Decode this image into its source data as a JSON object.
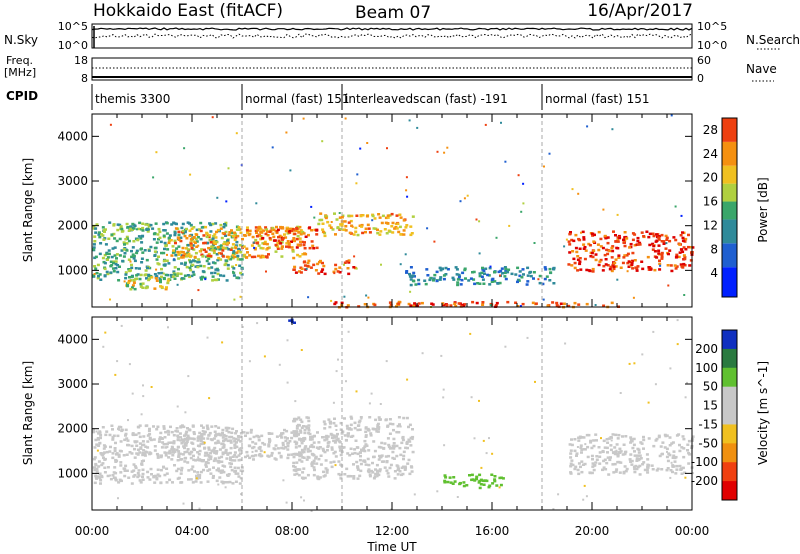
{
  "header": {
    "radar": "Hokkaido East (fitACF)",
    "beam": "Beam 07",
    "date": "16/Apr/2017"
  },
  "top_panels": {
    "nsky_label": "N.Sky",
    "nsky_ticks": [
      "10^5",
      "10^0"
    ],
    "nsearch_label": "N.Search",
    "nsearch_ticks": [
      "10^5",
      "10^0"
    ],
    "freq_label": "Freq.",
    "freq_unit": "[MHz]",
    "freq_ticks": [
      "18",
      "8"
    ],
    "nave_label": "Nave",
    "nave_ticks": [
      "60",
      "0"
    ],
    "cpid_label": "CPID",
    "cpid_segments": [
      {
        "label": "themis 3300",
        "start_hour": 0
      },
      {
        "label": "normal (fast) 151",
        "start_hour": 6
      },
      {
        "label": "interleavedscan (fast) -191",
        "start_hour": 10
      },
      {
        "label": "normal (fast) 151",
        "start_hour": 18
      }
    ]
  },
  "chart_data": [
    {
      "type": "heatmap",
      "title": "Power",
      "ylabel": "Slant Range [km]",
      "xlabel": "",
      "ylim": [
        180,
        4500
      ],
      "xlim_hours": [
        0,
        24
      ],
      "y_ticks": [
        1000,
        2000,
        3000,
        4000
      ],
      "colorbar_label": "Power [dB]",
      "colorbar_ticks": [
        4,
        8,
        12,
        16,
        20,
        24,
        28
      ],
      "colorbar_range": [
        0,
        30
      ],
      "regions": [
        {
          "t0": 0.0,
          "t1": 6.0,
          "r0": 800,
          "r1": 2100,
          "value": 14
        },
        {
          "t0": 1.2,
          "t1": 3.0,
          "r0": 600,
          "r1": 900,
          "value": 18
        },
        {
          "t0": 3.0,
          "t1": 8.5,
          "r0": 1300,
          "r1": 2000,
          "value": 23
        },
        {
          "t0": 6.5,
          "t1": 9.0,
          "r0": 1500,
          "r1": 2000,
          "value": 27
        },
        {
          "t0": 8.0,
          "t1": 10.5,
          "r0": 950,
          "r1": 1250,
          "value": 27
        },
        {
          "t0": 9.0,
          "t1": 12.8,
          "r0": 1800,
          "r1": 2300,
          "value": 22
        },
        {
          "t0": 12.5,
          "t1": 18.5,
          "r0": 700,
          "r1": 1100,
          "value": 11
        },
        {
          "t0": 19.0,
          "t1": 24.0,
          "r0": 1000,
          "r1": 1900,
          "value": 29
        },
        {
          "t0": 9.5,
          "t1": 21.0,
          "r0": 200,
          "r1": 320,
          "value": 27
        }
      ]
    },
    {
      "type": "heatmap",
      "title": "Velocity",
      "ylabel": "Slant Range [km]",
      "xlabel": "Time UT",
      "ylim": [
        180,
        4500
      ],
      "xlim_hours": [
        0,
        24
      ],
      "y_ticks": [
        1000,
        2000,
        3000,
        4000
      ],
      "x_ticks": [
        "00:00",
        "04:00",
        "08:00",
        "12:00",
        "16:00",
        "20:00",
        "00:00"
      ],
      "colorbar_label": "Velocity [m s^-1]",
      "colorbar_ticks": [
        "200",
        "100",
        "50",
        "15",
        "-15",
        "-50",
        "-100",
        "-200"
      ],
      "regions": [
        {
          "t0": 0.0,
          "t1": 6.0,
          "r0": 800,
          "r1": 2100,
          "value": 0
        },
        {
          "t0": 3.0,
          "t1": 8.5,
          "r0": 1300,
          "r1": 2000,
          "value": 0
        },
        {
          "t0": 8.0,
          "t1": 12.8,
          "r0": 900,
          "r1": 2300,
          "value": 0
        },
        {
          "t0": 14.0,
          "t1": 16.5,
          "r0": 700,
          "r1": 1000,
          "value": 60
        },
        {
          "t0": 19.0,
          "t1": 24.0,
          "r0": 1000,
          "r1": 1900,
          "value": 0
        },
        {
          "t0": 7.6,
          "t1": 8.2,
          "r0": 4400,
          "r1": 4500,
          "value": 250
        }
      ]
    }
  ]
}
